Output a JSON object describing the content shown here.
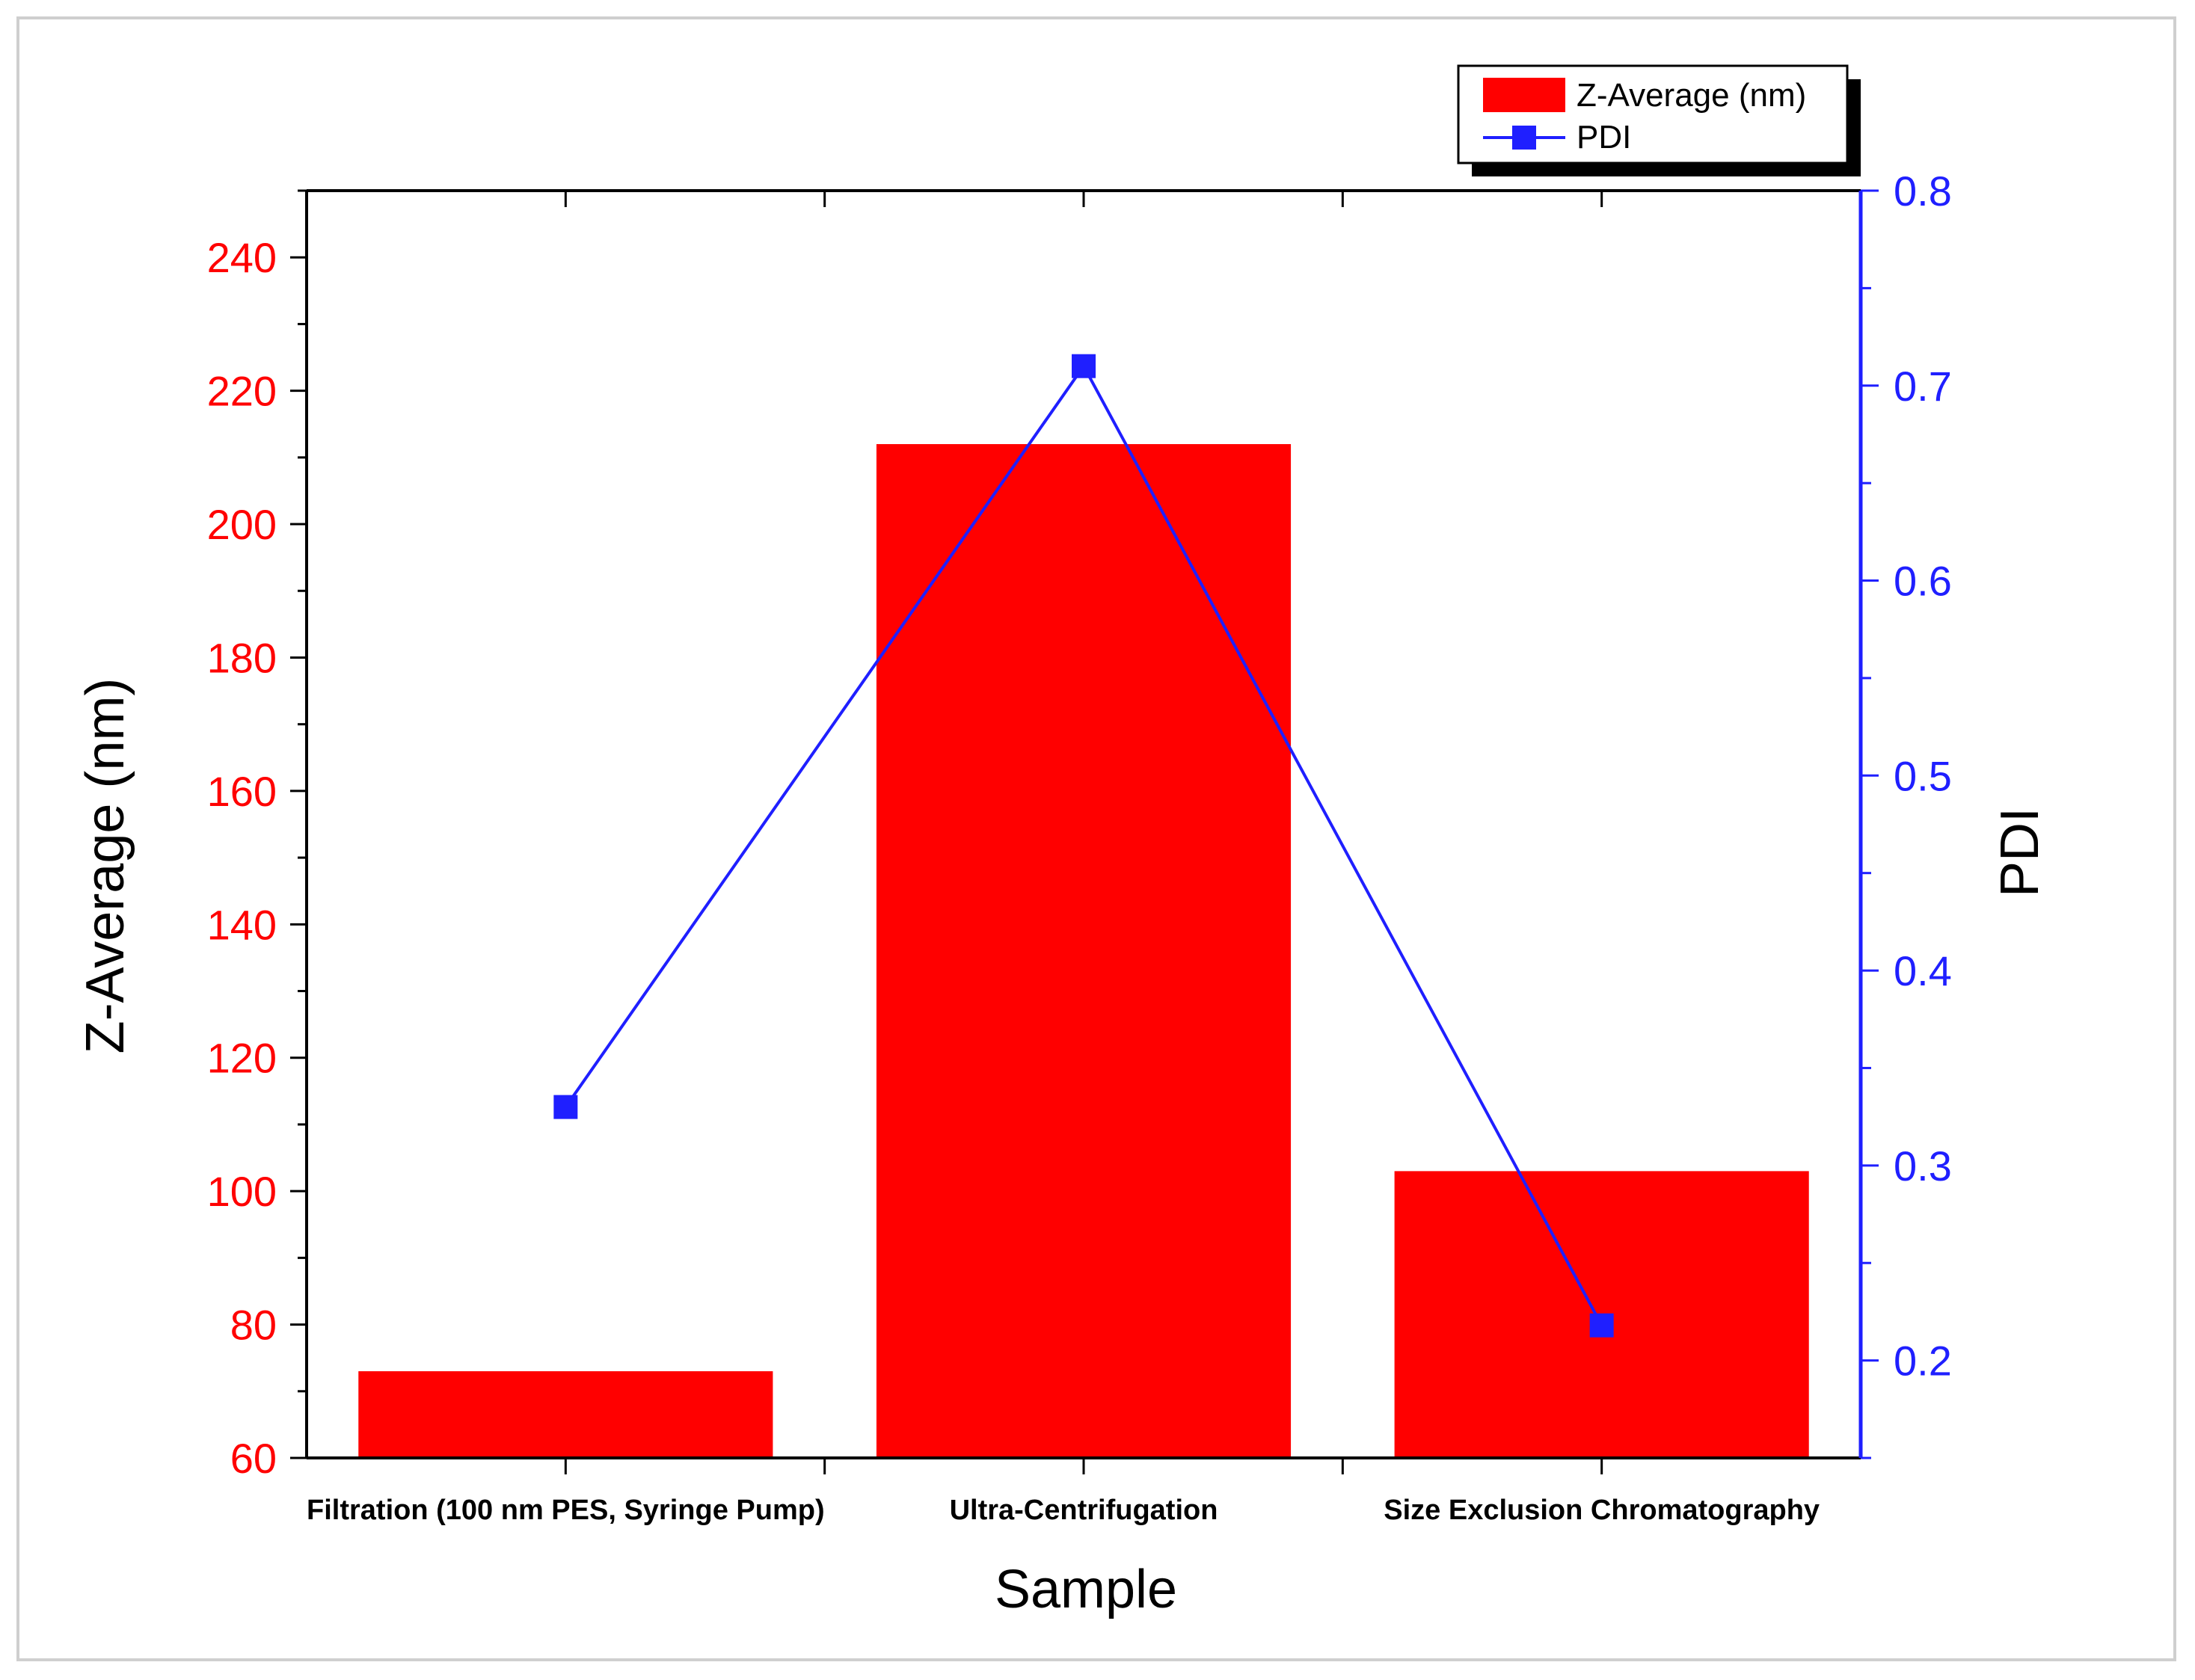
{
  "chart_data": {
    "type": "bar",
    "xlabel": "Sample",
    "ylabel": "Z-Average (nm)",
    "y2label": "PDI",
    "categories": [
      "Filtration (100 nm PES, Syringe Pump)",
      "Ultra-Centrifugation",
      "Size Exclusion Chromatography"
    ],
    "ylim": [
      60,
      250
    ],
    "y2lim": [
      0.15,
      0.8
    ],
    "yticks": [
      "60",
      "80",
      "100",
      "120",
      "140",
      "160",
      "180",
      "200",
      "220",
      "240"
    ],
    "y2ticks": [
      "0.2",
      "0.3",
      "0.4",
      "0.5",
      "0.6",
      "0.7",
      "0.8"
    ],
    "series": [
      {
        "name": "Z-Average (nm)",
        "type": "bar",
        "axis": "left",
        "color": "#ff0000",
        "values": [
          73,
          212,
          103
        ]
      },
      {
        "name": "PDI",
        "type": "line",
        "axis": "right",
        "color": "#1f1fff",
        "marker": "square",
        "values": [
          0.33,
          0.71,
          0.218
        ]
      }
    ],
    "legend": {
      "position": "top-right"
    },
    "grid": false
  }
}
